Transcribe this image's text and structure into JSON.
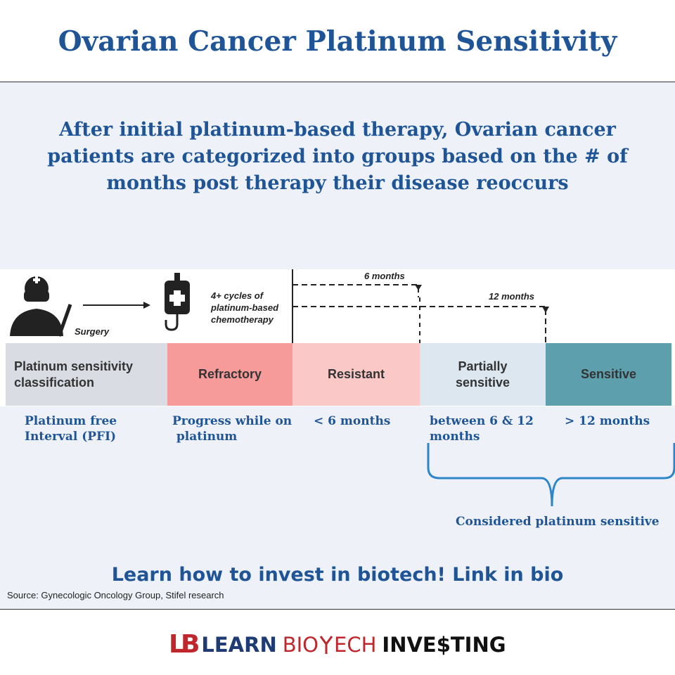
{
  "header": {
    "title": "Ovarian Cancer Platinum Sensitivity"
  },
  "intro": {
    "lines": [
      "After initial platinum-based therapy, Ovarian cancer",
      "patients are categorized into groups based on the # of",
      "months post therapy their disease reoccurs"
    ]
  },
  "diagram": {
    "surgery": "Surgery",
    "chemo": [
      "4+ cycles of",
      "platinum-based",
      "chemotherapy"
    ],
    "arrow_6": "6 months",
    "arrow_12": "12 months",
    "boxes": [
      [
        "Platinum sensitivity",
        "classification"
      ],
      [
        "Refractory"
      ],
      [
        "Resistant"
      ],
      [
        "Partially",
        "sensitive"
      ],
      [
        "Sensitive"
      ]
    ],
    "labels": [
      [
        "Platinum free",
        "Interval (PFI)"
      ],
      [
        "Progress while on",
        " platinum"
      ],
      [
        "< 6 months"
      ],
      [
        "between 6 & 12",
        "months"
      ],
      [
        "> 12 months"
      ]
    ],
    "bracket_label": "Considered platinum sensitive"
  },
  "cta": "Learn how to invest in biotech! Link in bio",
  "source": "Source: Gynecologic Oncology Group, Stifel research",
  "logo": {
    "mark": "LB",
    "learn": "LEARN",
    "bio": "BIO",
    "ech": "ECH",
    "investing": "INVE$TING"
  }
}
